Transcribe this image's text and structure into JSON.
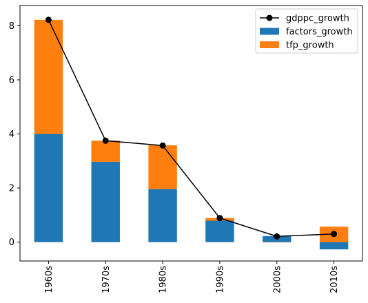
{
  "chart_data": {
    "type": "bar",
    "stacked": true,
    "categories": [
      "1960s",
      "1970s",
      "1980s",
      "1990s",
      "2000s",
      "2010s"
    ],
    "series": [
      {
        "name": "factors_growth",
        "kind": "bar",
        "color": "#1f77b4",
        "values": [
          4.0,
          2.97,
          1.96,
          0.79,
          0.22,
          -0.27
        ]
      },
      {
        "name": "tfp_growth",
        "kind": "bar",
        "color": "#ff7f0e",
        "values": [
          4.22,
          0.78,
          1.62,
          0.1,
          -0.01,
          0.57
        ]
      },
      {
        "name": "gdppc_growth",
        "kind": "line",
        "color": "#000000",
        "marker": "circle",
        "values": [
          8.22,
          3.75,
          3.57,
          0.89,
          0.21,
          0.3
        ]
      }
    ],
    "legend_order": [
      "gdppc_growth",
      "factors_growth",
      "tfp_growth"
    ],
    "yticks": [
      0,
      2,
      4,
      6,
      8
    ],
    "ylim": [
      -0.7,
      8.75
    ],
    "title": "",
    "xlabel": "",
    "ylabel": "",
    "legend_position": "top-right"
  }
}
